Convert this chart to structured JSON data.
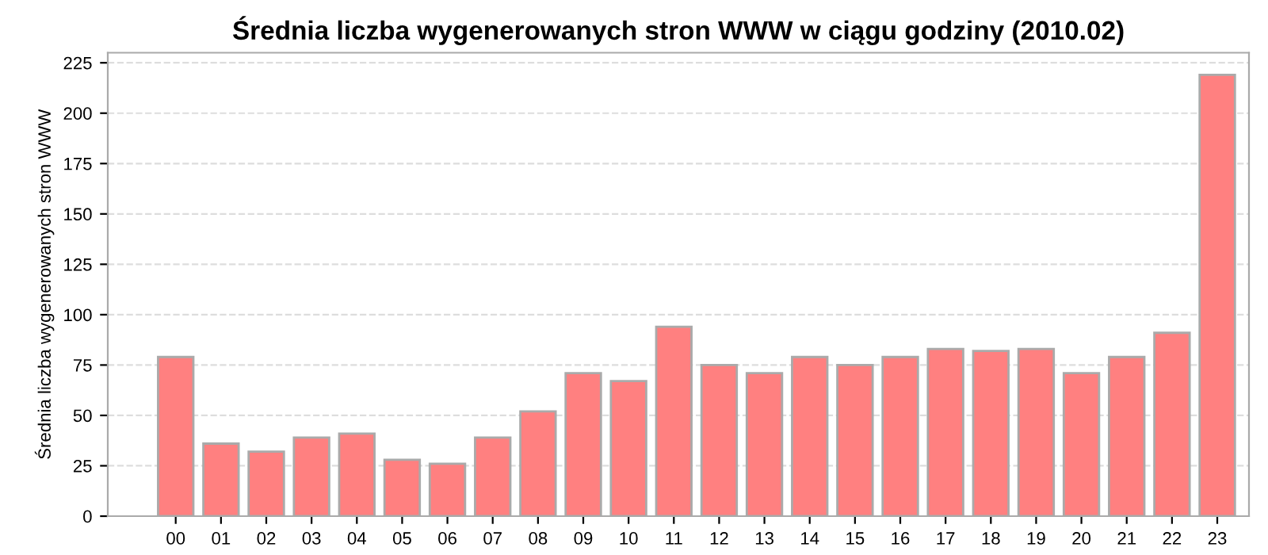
{
  "chart_data": {
    "type": "bar",
    "title": "Średnia liczba wygenerowanych stron WWW w ciągu godziny (2010.02)",
    "ylabel": "Średnia liczba wygenerowanych stron WWW",
    "categories": [
      "00",
      "01",
      "02",
      "03",
      "04",
      "05",
      "06",
      "07",
      "08",
      "09",
      "10",
      "11",
      "12",
      "13",
      "14",
      "15",
      "16",
      "17",
      "18",
      "19",
      "20",
      "21",
      "22",
      "23"
    ],
    "values": [
      79,
      36,
      32,
      39,
      41,
      28,
      26,
      39,
      52,
      71,
      67,
      94,
      75,
      71,
      79,
      75,
      79,
      83,
      82,
      83,
      71,
      79,
      91,
      219
    ],
    "color": "#ff8080",
    "ylim": [
      0,
      230
    ],
    "yticks": [
      0,
      25,
      50,
      75,
      100,
      125,
      150,
      175,
      200,
      225
    ],
    "grid": "y"
  }
}
